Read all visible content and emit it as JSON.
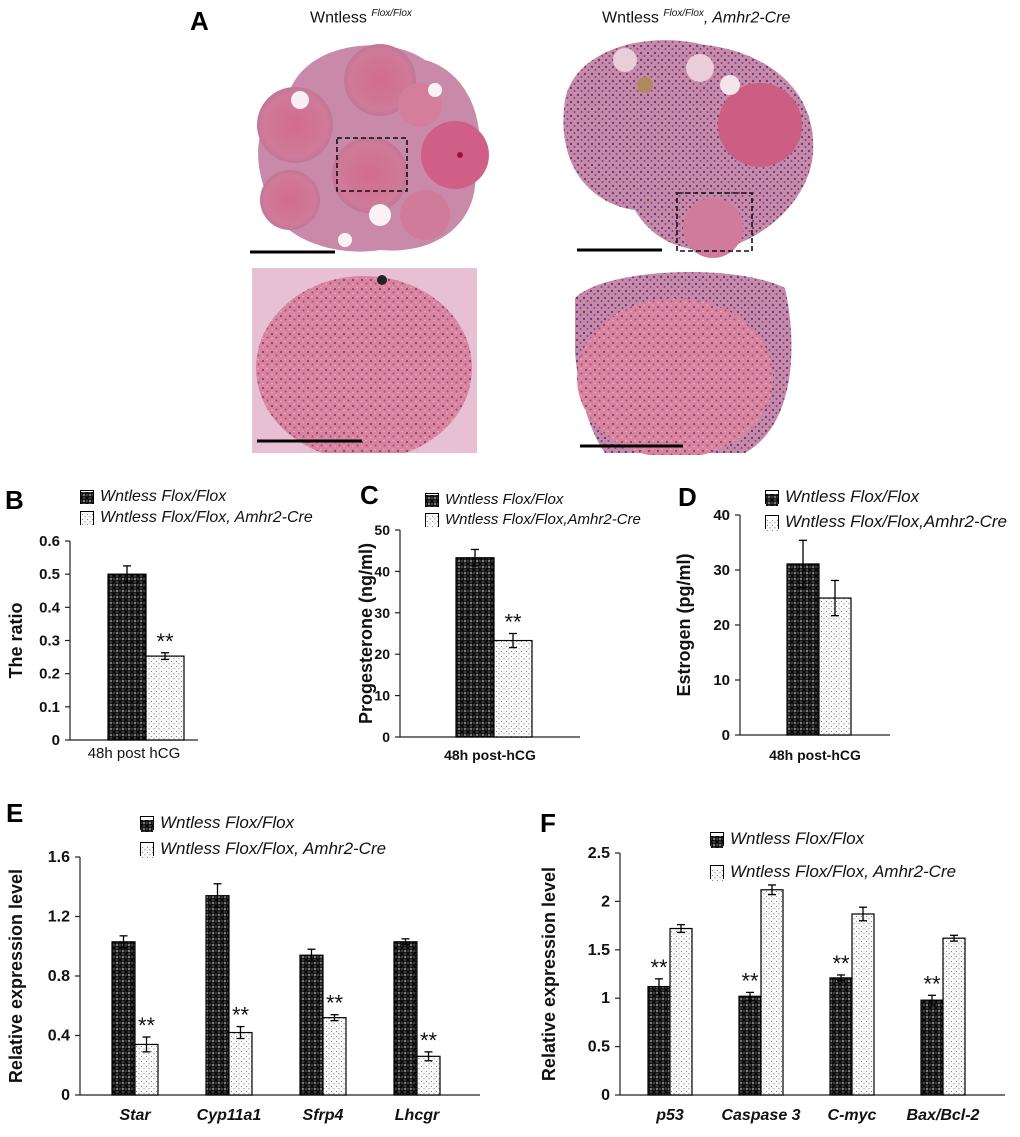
{
  "panel_A": {
    "letter": "A",
    "left_title_main": "Wntless",
    "left_title_sup": "Flox/Flox",
    "right_title_main": "Wntless",
    "right_title_sup": "Flox/Flox",
    "right_title_suffix": ", Amhr2-Cre"
  },
  "colors": {
    "tissue_pink": "#d77a97",
    "tissue_dark": "#b3557a",
    "tissue_light": "#e9b6c7",
    "bar_dark": "#2a2a2a",
    "bar_light": "#f7f7f7"
  },
  "chart_data": [
    {
      "id": "B",
      "letter": "B",
      "type": "bar",
      "legend": [
        "Wntless Flox/Flox",
        "Wntless Flox/Flox, Amhr2-Cre"
      ],
      "categories": [
        "48h post hCG"
      ],
      "series": [
        {
          "name": "Wntless Flox/Flox",
          "values": [
            0.5
          ],
          "errors": [
            0.025
          ],
          "sig": [
            ""
          ]
        },
        {
          "name": "Wntless Flox/Flox, Amhr2-Cre",
          "values": [
            0.253
          ],
          "errors": [
            0.01
          ],
          "sig": [
            "**"
          ]
        }
      ],
      "ylabel": "The ratio",
      "ylim": [
        0,
        0.6
      ],
      "yticks": [
        "0",
        "0.1",
        "0.2",
        "0.3",
        "0.4",
        "0.5",
        "0.6"
      ]
    },
    {
      "id": "C",
      "letter": "C",
      "type": "bar",
      "legend": [
        "Wntless Flox/Flox",
        "Wntless Flox/Flox,Amhr2-Cre"
      ],
      "categories": [
        "48h post-hCG"
      ],
      "series": [
        {
          "name": "Wntless Flox/Flox",
          "values": [
            43.3
          ],
          "errors": [
            2.0
          ],
          "sig": [
            ""
          ]
        },
        {
          "name": "Wntless Flox/Flox,Amhr2-Cre",
          "values": [
            23.3
          ],
          "errors": [
            1.7
          ],
          "sig": [
            "**"
          ]
        }
      ],
      "ylabel": "Progesterone (ng/ml)",
      "ylim": [
        0,
        50
      ],
      "yticks": [
        "0",
        "10",
        "20",
        "30",
        "40",
        "50"
      ]
    },
    {
      "id": "D",
      "letter": "D",
      "type": "bar",
      "legend": [
        "Wntless Flox/Flox",
        "Wntless Flox/Flox,Amhr2-Cre"
      ],
      "categories": [
        "48h post-hCG"
      ],
      "series": [
        {
          "name": "Wntless Flox/Flox",
          "values": [
            31.1
          ],
          "errors": [
            4.3
          ],
          "sig": [
            ""
          ]
        },
        {
          "name": "Wntless Flox/Flox,Amhr2-Cre",
          "values": [
            24.9
          ],
          "errors": [
            3.2
          ],
          "sig": [
            ""
          ]
        }
      ],
      "ylabel": "Estrogen (pg/ml)",
      "ylim": [
        0,
        40
      ],
      "yticks": [
        "0",
        "10",
        "20",
        "30",
        "40"
      ]
    },
    {
      "id": "E",
      "letter": "E",
      "type": "bar",
      "legend": [
        "Wntless Flox/Flox",
        "Wntless Flox/Flox, Amhr2-Cre"
      ],
      "categories": [
        "Star",
        "Cyp11a1",
        "Sfrp4",
        "Lhcgr"
      ],
      "series": [
        {
          "name": "Wntless Flox/Flox",
          "values": [
            1.03,
            1.34,
            0.94,
            1.03
          ],
          "errors": [
            0.04,
            0.08,
            0.04,
            0.02
          ],
          "sig": [
            "",
            "",
            "",
            ""
          ]
        },
        {
          "name": "Wntless Flox/Flox, Amhr2-Cre",
          "values": [
            0.34,
            0.42,
            0.52,
            0.26
          ],
          "errors": [
            0.05,
            0.04,
            0.02,
            0.03
          ],
          "sig": [
            "**",
            "**",
            "**",
            "**"
          ]
        }
      ],
      "ylabel": "Relative expression level",
      "ylim": [
        0,
        1.6
      ],
      "yticks": [
        "0",
        "0.4",
        "0.8",
        "1.2",
        "1.6"
      ]
    },
    {
      "id": "F",
      "letter": "F",
      "type": "bar",
      "legend": [
        "Wntless Flox/Flox",
        "Wntless Flox/Flox, Amhr2-Cre"
      ],
      "categories": [
        "p53",
        "Caspase 3",
        "C-myc",
        "Bax/Bcl-2"
      ],
      "series": [
        {
          "name": "Wntless Flox/Flox",
          "values": [
            1.12,
            1.02,
            1.21,
            0.98
          ],
          "errors": [
            0.08,
            0.04,
            0.03,
            0.05
          ],
          "sig": [
            "**",
            "**",
            "**",
            "**"
          ]
        },
        {
          "name": "Wntless Flox/Flox, Amhr2-Cre",
          "values": [
            1.72,
            2.12,
            1.87,
            1.62
          ],
          "errors": [
            0.04,
            0.05,
            0.07,
            0.03
          ],
          "sig": [
            "",
            "",
            "",
            ""
          ]
        }
      ],
      "ylabel": "Relative expression level",
      "ylim": [
        0,
        2.5
      ],
      "yticks": [
        "0",
        "0.5",
        "1",
        "1.5",
        "2",
        "2.5"
      ]
    }
  ]
}
